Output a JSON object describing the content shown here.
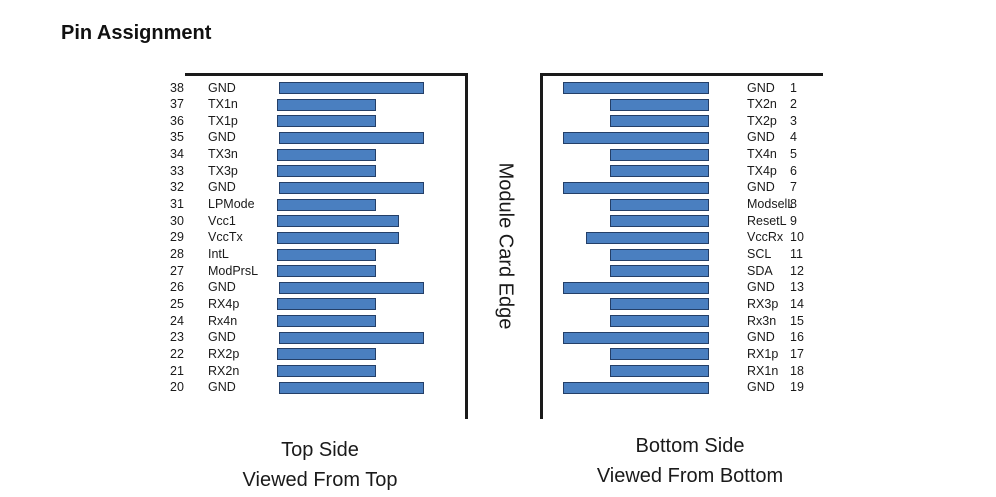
{
  "title": "Pin Assignment",
  "edge_label": "Module Card Edge",
  "colors": {
    "pad_fill": "#4a7fc0",
    "pad_border": "#243f68",
    "frame": "#1a1a1a"
  },
  "top_side": {
    "caption_line1": "Top Side",
    "caption_line2": "Viewed From Top",
    "pins": [
      {
        "num": "38",
        "name": "GND",
        "pad": "long"
      },
      {
        "num": "37",
        "name": "TX1n",
        "pad": "short"
      },
      {
        "num": "36",
        "name": "TX1p",
        "pad": "short"
      },
      {
        "num": "35",
        "name": "GND",
        "pad": "long"
      },
      {
        "num": "34",
        "name": "TX3n",
        "pad": "short"
      },
      {
        "num": "33",
        "name": "TX3p",
        "pad": "short"
      },
      {
        "num": "32",
        "name": "GND",
        "pad": "long"
      },
      {
        "num": "31",
        "name": "LPMode",
        "pad": "short"
      },
      {
        "num": "30",
        "name": "Vcc1",
        "pad": "medium"
      },
      {
        "num": "29",
        "name": "VccTx",
        "pad": "medium"
      },
      {
        "num": "28",
        "name": "IntL",
        "pad": "short"
      },
      {
        "num": "27",
        "name": "ModPrsL",
        "pad": "short"
      },
      {
        "num": "26",
        "name": "GND",
        "pad": "long"
      },
      {
        "num": "25",
        "name": "RX4p",
        "pad": "short"
      },
      {
        "num": "24",
        "name": "Rx4n",
        "pad": "short"
      },
      {
        "num": "23",
        "name": "GND",
        "pad": "long"
      },
      {
        "num": "22",
        "name": "RX2p",
        "pad": "short"
      },
      {
        "num": "21",
        "name": "RX2n",
        "pad": "short"
      },
      {
        "num": "20",
        "name": "GND",
        "pad": "long"
      }
    ]
  },
  "bottom_side": {
    "caption_line1": "Bottom Side",
    "caption_line2": "Viewed From Bottom",
    "pins": [
      {
        "num": "1",
        "name": "GND",
        "pad": "long"
      },
      {
        "num": "2",
        "name": "TX2n",
        "pad": "short"
      },
      {
        "num": "3",
        "name": "TX2p",
        "pad": "short"
      },
      {
        "num": "4",
        "name": "GND",
        "pad": "long"
      },
      {
        "num": "5",
        "name": "TX4n",
        "pad": "short"
      },
      {
        "num": "6",
        "name": "TX4p",
        "pad": "short"
      },
      {
        "num": "7",
        "name": "GND",
        "pad": "long"
      },
      {
        "num": "8",
        "name": "ModselL",
        "pad": "short"
      },
      {
        "num": "9",
        "name": "ResetL",
        "pad": "short"
      },
      {
        "num": "10",
        "name": "VccRx",
        "pad": "medium"
      },
      {
        "num": "11",
        "name": "SCL",
        "pad": "short"
      },
      {
        "num": "12",
        "name": "SDA",
        "pad": "short"
      },
      {
        "num": "13",
        "name": "GND",
        "pad": "long"
      },
      {
        "num": "14",
        "name": "RX3p",
        "pad": "short"
      },
      {
        "num": "15",
        "name": "Rx3n",
        "pad": "short"
      },
      {
        "num": "16",
        "name": "GND",
        "pad": "long"
      },
      {
        "num": "17",
        "name": "RX1p",
        "pad": "short"
      },
      {
        "num": "18",
        "name": "RX1n",
        "pad": "short"
      },
      {
        "num": "19",
        "name": "GND",
        "pad": "long"
      }
    ]
  }
}
